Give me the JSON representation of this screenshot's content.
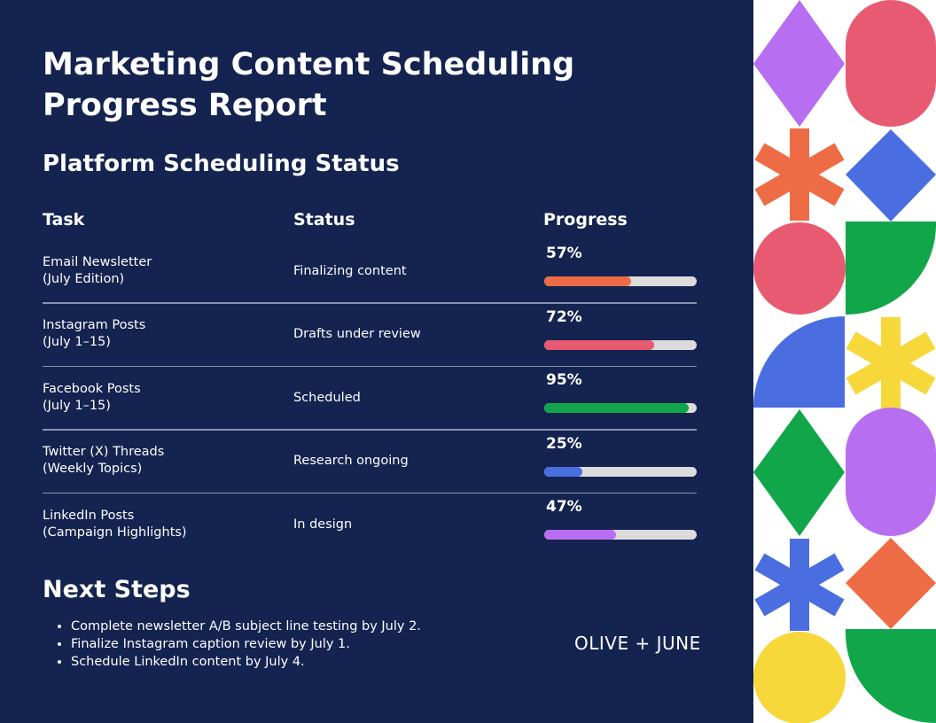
{
  "header": {
    "title_lines": [
      "Marketing Content Scheduling",
      "Progress Report"
    ],
    "subtitle": "Platform Scheduling Status"
  },
  "table": {
    "columns": [
      "Task",
      "Status",
      "Progress"
    ],
    "rows": [
      {
        "task": [
          "Email Newsletter",
          "(July Edition)"
        ],
        "status": "Finalizing content",
        "progress": 57,
        "progress_label": "57%",
        "color": "#ee6c45"
      },
      {
        "task": [
          "Instagram Posts",
          "(July 1–15)"
        ],
        "status": "Drafts under review",
        "progress": 72,
        "progress_label": "72%",
        "color": "#e85a71"
      },
      {
        "task": [
          "Facebook Posts",
          "(July 1–15)"
        ],
        "status": "Scheduled",
        "progress": 95,
        "progress_label": "95%",
        "color": "#12a64a"
      },
      {
        "task": [
          "Twitter (X) Threads",
          "(Weekly Topics)"
        ],
        "status": "Research ongoing",
        "progress": 25,
        "progress_label": "25%",
        "color": "#4a6ee0"
      },
      {
        "task": [
          "LinkedIn Posts",
          "(Campaign Highlights)"
        ],
        "status": "In design",
        "progress": 47,
        "progress_label": "47%",
        "color": "#b86ef0"
      }
    ]
  },
  "next_steps": {
    "title": "Next Steps",
    "items": [
      "Complete newsletter A/B subject line testing by July 2.",
      "Finalize Instagram caption review by July 1.",
      "Schedule LinkedIn content by July 4."
    ]
  },
  "brand": "OLIVE + JUNE"
}
